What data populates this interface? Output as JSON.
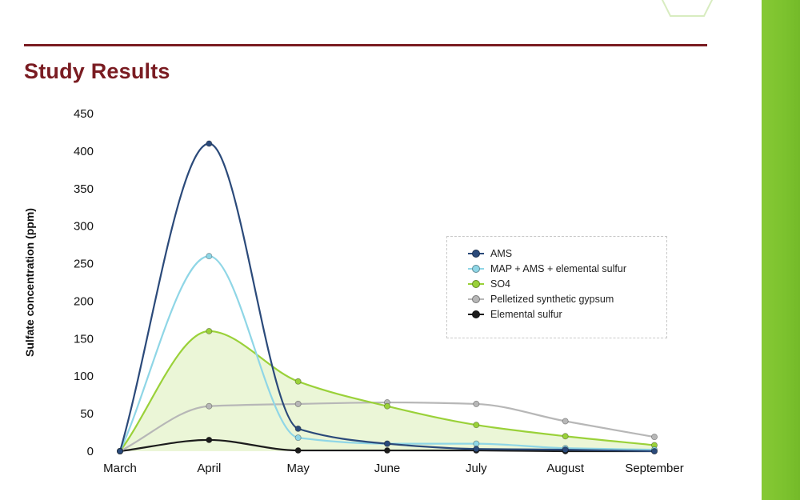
{
  "page": {
    "heading": "Study Results"
  },
  "colors": {
    "heading": "#7a1c22",
    "accent_bar": "#7cc22e"
  },
  "chart_data": {
    "type": "line",
    "title": "",
    "xlabel": "",
    "ylabel": "Sulfate concentration (ppm)",
    "categories": [
      "March",
      "April",
      "May",
      "June",
      "July",
      "August",
      "September"
    ],
    "y_ticks": [
      0,
      50,
      100,
      150,
      200,
      250,
      300,
      350,
      400,
      450
    ],
    "ylim": [
      0,
      450
    ],
    "grid": false,
    "legend_position": "right",
    "series": [
      {
        "name": "AMS",
        "values": [
          0,
          410,
          30,
          10,
          3,
          2,
          0
        ],
        "color": "#2b4a7a",
        "filled": false
      },
      {
        "name": "MAP + AMS + elemental sulfur",
        "values": [
          0,
          260,
          18,
          10,
          10,
          4,
          2
        ],
        "color": "#8fd6e6",
        "filled": false
      },
      {
        "name": "SO4",
        "values": [
          0,
          160,
          93,
          60,
          35,
          20,
          8
        ],
        "color": "#9ad139",
        "filled": true
      },
      {
        "name": "Pelletized synthetic gypsum",
        "values": [
          0,
          60,
          63,
          65,
          63,
          40,
          19
        ],
        "color": "#b7b7b7",
        "filled": false
      },
      {
        "name": "Elemental sulfur",
        "values": [
          0,
          15,
          1,
          1,
          1,
          0,
          0
        ],
        "color": "#1c1c1c",
        "filled": false
      }
    ]
  }
}
